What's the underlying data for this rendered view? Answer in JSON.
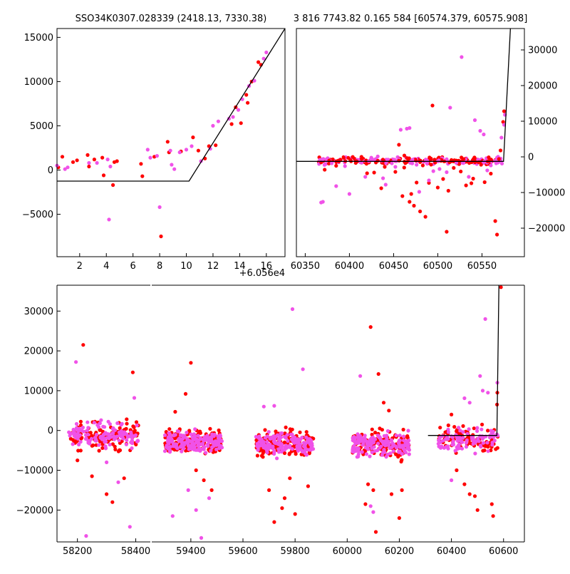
{
  "titles": {
    "left": "SSO34K0307.028339 (2418.13, 7330.38)",
    "right": "3 816 7743.82 0.165 584 [60574.379, 60575.908]"
  },
  "offset_label": "+6.056e4",
  "colors": {
    "red": "#ff0000",
    "magenta": "#f052e8",
    "model": "#000000"
  },
  "chart_data": [
    {
      "name": "phase-zoom",
      "type": "scatter",
      "xlim": [
        0.3,
        17.4
      ],
      "ylim": [
        -9800,
        16000
      ],
      "x_ticks": [
        2,
        4,
        6,
        8,
        10,
        12,
        14,
        16
      ],
      "y_ticks": [
        -5000,
        0,
        5000,
        10000,
        15000
      ],
      "model_line": [
        [
          0.3,
          -1250
        ],
        [
          10.2,
          -1250
        ],
        [
          17.4,
          16000
        ]
      ],
      "series": [
        {
          "color": "red",
          "points": [
            [
              0.4,
              300
            ],
            [
              0.7,
              1500
            ],
            [
              1.5,
              900
            ],
            [
              1.8,
              1100
            ],
            [
              2.6,
              1700
            ],
            [
              2.7,
              400
            ],
            [
              3.1,
              1200
            ],
            [
              3.7,
              1400
            ],
            [
              3.8,
              -600
            ],
            [
              4.5,
              -1700
            ],
            [
              4.6,
              900
            ],
            [
              4.8,
              1000
            ],
            [
              6.6,
              700
            ],
            [
              6.7,
              -700
            ],
            [
              7.6,
              1500
            ],
            [
              8.1,
              -7500
            ],
            [
              8.6,
              3200
            ],
            [
              8.7,
              2000
            ],
            [
              9.6,
              2100
            ],
            [
              10.5,
              3700
            ],
            [
              10.9,
              2200
            ],
            [
              11.4,
              1300
            ],
            [
              11.7,
              2700
            ],
            [
              12.2,
              2800
            ],
            [
              13.4,
              5200
            ],
            [
              13.7,
              7100
            ],
            [
              14.1,
              5300
            ],
            [
              14.5,
              8500
            ],
            [
              14.6,
              7600
            ],
            [
              14.9,
              10000
            ],
            [
              15.4,
              12200
            ],
            [
              15.6,
              11900
            ]
          ]
        },
        {
          "color": "magenta",
          "points": [
            [
              0.3,
              500
            ],
            [
              0.9,
              100
            ],
            [
              1.1,
              300
            ],
            [
              2.7,
              800
            ],
            [
              3.3,
              800
            ],
            [
              4.1,
              1200
            ],
            [
              4.2,
              -5600
            ],
            [
              4.3,
              400
            ],
            [
              7.1,
              2300
            ],
            [
              7.3,
              1400
            ],
            [
              7.8,
              1600
            ],
            [
              8.0,
              -4200
            ],
            [
              8.8,
              2200
            ],
            [
              8.9,
              600
            ],
            [
              9.1,
              100
            ],
            [
              9.5,
              2000
            ],
            [
              10.0,
              2300
            ],
            [
              10.4,
              2700
            ],
            [
              11.1,
              1000
            ],
            [
              11.8,
              2400
            ],
            [
              12.0,
              5000
            ],
            [
              12.4,
              5500
            ],
            [
              13.2,
              5800
            ],
            [
              13.5,
              6000
            ],
            [
              13.9,
              6800
            ],
            [
              14.2,
              8000
            ],
            [
              14.7,
              9500
            ],
            [
              15.1,
              10100
            ],
            [
              15.8,
              12600
            ],
            [
              16.0,
              13300
            ]
          ]
        }
      ]
    },
    {
      "name": "recent-season",
      "type": "scatter",
      "xlim": [
        60340,
        60598
      ],
      "ylim": [
        -28000,
        36000
      ],
      "x_ticks": [
        60350,
        60400,
        60450,
        60500,
        60550
      ],
      "y_ticks": [
        -20000,
        -10000,
        0,
        10000,
        20000,
        30000
      ],
      "model_line": [
        [
          60340,
          -1250
        ],
        [
          60574.4,
          -1250
        ],
        [
          60583,
          40000
        ]
      ],
      "series": [
        {
          "color": "red",
          "points": [
            [
              60372,
              -3600
            ],
            [
              60385,
              -2500
            ],
            [
              60390,
              -800
            ],
            [
              60408,
              -1200
            ],
            [
              60420,
              -4600
            ],
            [
              60428,
              -4400
            ],
            [
              60436,
              -8800
            ],
            [
              60440,
              -2800
            ],
            [
              60446,
              -1400
            ],
            [
              60452,
              -4200
            ],
            [
              60456,
              3400
            ],
            [
              60460,
              -11000
            ],
            [
              60462,
              -3000
            ],
            [
              60468,
              -12600
            ],
            [
              60470,
              -10400
            ],
            [
              60473,
              -13700
            ],
            [
              60476,
              -7200
            ],
            [
              60480,
              -15300
            ],
            [
              60483,
              -2400
            ],
            [
              60486,
              -16800
            ],
            [
              60490,
              -7300
            ],
            [
              60494,
              14400
            ],
            [
              60497,
              -1600
            ],
            [
              60500,
              -8600
            ],
            [
              60506,
              -6200
            ],
            [
              60510,
              -21000
            ],
            [
              60512,
              -9500
            ],
            [
              60518,
              -3100
            ],
            [
              60526,
              -4100
            ],
            [
              60532,
              -8000
            ],
            [
              60538,
              -7400
            ],
            [
              60540,
              -6100
            ],
            [
              60546,
              -1500
            ],
            [
              60549,
              -2200
            ],
            [
              60553,
              -7100
            ],
            [
              60560,
              -4700
            ],
            [
              60565,
              -18000
            ],
            [
              60567,
              -21800
            ],
            [
              60571,
              1800
            ],
            [
              60574,
              9800
            ],
            [
              60575,
              12800
            ]
          ]
        },
        {
          "color": "magenta",
          "points": [
            [
              60368,
              -12800
            ],
            [
              60370,
              -12600
            ],
            [
              60380,
              -1800
            ],
            [
              60385,
              -8200
            ],
            [
              60395,
              -2600
            ],
            [
              60400,
              -10400
            ],
            [
              60418,
              -5600
            ],
            [
              60422,
              -1200
            ],
            [
              60438,
              -6000
            ],
            [
              60441,
              -7800
            ],
            [
              60448,
              -1800
            ],
            [
              60452,
              -2800
            ],
            [
              60458,
              7600
            ],
            [
              60465,
              7900
            ],
            [
              60468,
              8100
            ],
            [
              60476,
              -2200
            ],
            [
              60479,
              -9800
            ],
            [
              60490,
              -6600
            ],
            [
              60495,
              -4000
            ],
            [
              60502,
              -3400
            ],
            [
              60510,
              -4300
            ],
            [
              60514,
              13800
            ],
            [
              60521,
              -1700
            ],
            [
              60527,
              28000
            ],
            [
              60535,
              -5600
            ],
            [
              60542,
              10300
            ],
            [
              60548,
              7300
            ],
            [
              60552,
              6300
            ],
            [
              60556,
              -3800
            ],
            [
              60560,
              -2400
            ],
            [
              60568,
              -1600
            ],
            [
              60572,
              5400
            ],
            [
              60575,
              9000
            ],
            [
              60576,
              11800
            ]
          ]
        }
      ]
    },
    {
      "name": "full-lightcurve",
      "type": "scatter",
      "broken_x_axis": true,
      "segments": [
        {
          "xlim": [
            58130,
            58450
          ],
          "x_ticks": [
            58200,
            58400
          ]
        },
        {
          "xlim": [
            59250,
            60680
          ],
          "x_ticks": [
            59400,
            59600,
            59800,
            60000,
            60200,
            60400,
            60600
          ]
        }
      ],
      "ylim": [
        -28000,
        36500
      ],
      "y_ticks": [
        -20000,
        -10000,
        0,
        10000,
        20000,
        30000
      ],
      "model_line": [
        [
          60310,
          -1250
        ],
        [
          60574.4,
          -1250
        ],
        [
          60583,
          40000
        ]
      ],
      "seasons": [
        {
          "range": [
            58170,
            58410
          ],
          "ymin": -6500,
          "ymax": 4000,
          "density": 120
        },
        {
          "range": [
            59300,
            59520
          ],
          "ymin": -7500,
          "ymax": 1500,
          "density": 170
        },
        {
          "range": [
            59650,
            59870
          ],
          "ymin": -8000,
          "ymax": 1500,
          "density": 150
        },
        {
          "range": [
            60020,
            60240
          ],
          "ymin": -8500,
          "ymax": 1500,
          "density": 150
        },
        {
          "range": [
            60350,
            60580
          ],
          "ymin": -7000,
          "ymax": 2500,
          "density": 90
        }
      ],
      "series": [
        {
          "color": "red",
          "points": [
            [
              58220,
              21500
            ],
            [
              58200,
              -7500
            ],
            [
              58250,
              -11500
            ],
            [
              58300,
              -16000
            ],
            [
              58320,
              -18000
            ],
            [
              58390,
              14600
            ],
            [
              58360,
              -12000
            ],
            [
              59400,
              17000
            ],
            [
              59380,
              9200
            ],
            [
              59340,
              4700
            ],
            [
              59420,
              -10000
            ],
            [
              59450,
              -12500
            ],
            [
              59480,
              -15000
            ],
            [
              59700,
              -15000
            ],
            [
              59750,
              -19500
            ],
            [
              59760,
              -17000
            ],
            [
              59800,
              -21000
            ],
            [
              59780,
              -12000
            ],
            [
              59720,
              -23000
            ],
            [
              59850,
              -14000
            ],
            [
              60090,
              26000
            ],
            [
              60120,
              14200
            ],
            [
              60080,
              -13500
            ],
            [
              60100,
              -15000
            ],
            [
              60110,
              -25500
            ],
            [
              60070,
              -18500
            ],
            [
              60170,
              -16000
            ],
            [
              60200,
              -22000
            ],
            [
              60210,
              -15000
            ],
            [
              60140,
              7000
            ],
            [
              60160,
              5000
            ],
            [
              60400,
              4000
            ],
            [
              60420,
              -10000
            ],
            [
              60450,
              -13500
            ],
            [
              60470,
              -16000
            ],
            [
              60490,
              -16500
            ],
            [
              60500,
              -20000
            ],
            [
              60560,
              -21500
            ],
            [
              60555,
              -18500
            ],
            [
              60575,
              6500
            ],
            [
              60576,
              9500
            ],
            [
              60590,
              36000
            ]
          ]
        },
        {
          "color": "magenta",
          "points": [
            [
              58195,
              17200
            ],
            [
              58230,
              -26500
            ],
            [
              58300,
              -8000
            ],
            [
              58340,
              -13000
            ],
            [
              58380,
              -24200
            ],
            [
              58395,
              8200
            ],
            [
              58350,
              -1500
            ],
            [
              59370,
              -2000
            ],
            [
              59330,
              -21500
            ],
            [
              59440,
              -27000
            ],
            [
              59390,
              -15000
            ],
            [
              59420,
              -20000
            ],
            [
              59470,
              -17000
            ],
            [
              59680,
              6000
            ],
            [
              59720,
              6200
            ],
            [
              59730,
              -7000
            ],
            [
              59790,
              30500
            ],
            [
              59830,
              15400
            ],
            [
              60050,
              13700
            ],
            [
              60090,
              -19000
            ],
            [
              60100,
              -20500
            ],
            [
              60150,
              -3000
            ],
            [
              60200,
              -2500
            ],
            [
              60450,
              8100
            ],
            [
              60470,
              7000
            ],
            [
              60510,
              13700
            ],
            [
              60530,
              28000
            ],
            [
              60400,
              -12500
            ],
            [
              60520,
              10000
            ],
            [
              60540,
              9500
            ],
            [
              60576,
              12000
            ]
          ]
        }
      ]
    }
  ]
}
